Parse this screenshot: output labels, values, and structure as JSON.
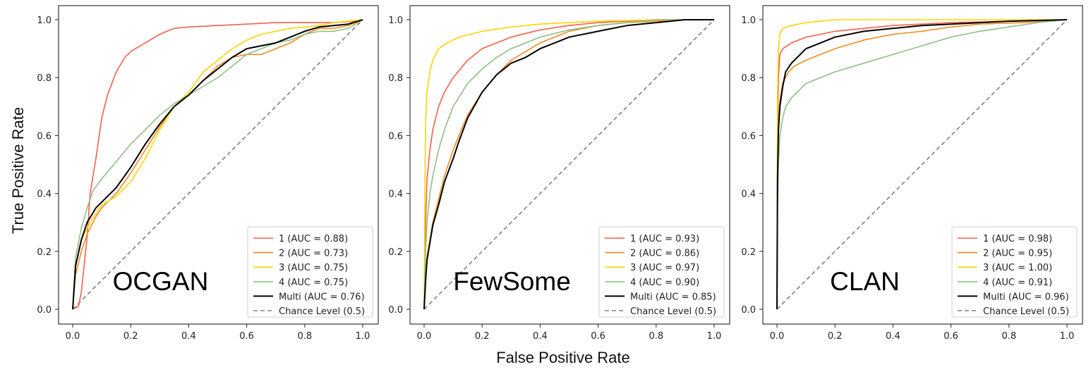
{
  "figure": {
    "xlabel": "False Positive Rate",
    "ylabel": "True Positive Rate"
  },
  "chart_data": [
    {
      "type": "line",
      "title": "OCGAN",
      "xlim": [
        0,
        1
      ],
      "ylim": [
        0,
        1
      ],
      "xticks": [
        "0.0",
        "0.2",
        "0.4",
        "0.6",
        "0.8",
        "1.0"
      ],
      "yticks": [
        "0.0",
        "0.2",
        "0.4",
        "0.6",
        "0.8",
        "1.0"
      ],
      "legend_position": "lower-right",
      "series": [
        {
          "name": "1 (AUC = 0.88)",
          "color": "#f4604a",
          "x": [
            0,
            0.02,
            0.03,
            0.05,
            0.06,
            0.08,
            0.1,
            0.12,
            0.15,
            0.18,
            0.2,
            0.25,
            0.3,
            0.35,
            0.4,
            0.5,
            0.6,
            0.7,
            0.8,
            0.9,
            0.97,
            1.0
          ],
          "y": [
            0,
            0.01,
            0.06,
            0.25,
            0.4,
            0.52,
            0.66,
            0.74,
            0.82,
            0.87,
            0.89,
            0.92,
            0.95,
            0.97,
            0.975,
            0.98,
            0.985,
            0.99,
            0.99,
            0.99,
            0.995,
            1.0
          ]
        },
        {
          "name": "2 (AUC = 0.73)",
          "color": "#f28a1f",
          "x": [
            0,
            0.01,
            0.03,
            0.05,
            0.08,
            0.1,
            0.15,
            0.2,
            0.25,
            0.3,
            0.35,
            0.4,
            0.45,
            0.5,
            0.55,
            0.6,
            0.65,
            0.7,
            0.75,
            0.8,
            0.85,
            0.9,
            0.95,
            1.0
          ],
          "y": [
            0,
            0.12,
            0.2,
            0.26,
            0.32,
            0.35,
            0.4,
            0.47,
            0.55,
            0.63,
            0.7,
            0.74,
            0.79,
            0.84,
            0.87,
            0.88,
            0.88,
            0.9,
            0.92,
            0.95,
            0.97,
            0.97,
            0.98,
            1.0
          ]
        },
        {
          "name": "3 (AUC = 0.75)",
          "color": "#fdd500",
          "x": [
            0,
            0.01,
            0.03,
            0.06,
            0.1,
            0.15,
            0.2,
            0.25,
            0.3,
            0.35,
            0.4,
            0.45,
            0.5,
            0.55,
            0.6,
            0.65,
            0.7,
            0.75,
            0.8,
            0.85,
            0.9,
            0.95,
            1.0
          ],
          "y": [
            0,
            0.15,
            0.24,
            0.3,
            0.36,
            0.39,
            0.44,
            0.52,
            0.62,
            0.7,
            0.75,
            0.82,
            0.86,
            0.9,
            0.93,
            0.95,
            0.96,
            0.97,
            0.975,
            0.98,
            0.99,
            0.995,
            1.0
          ]
        },
        {
          "name": "4 (AUC = 0.75)",
          "color": "#8fbf85",
          "x": [
            0,
            0.01,
            0.03,
            0.05,
            0.07,
            0.1,
            0.15,
            0.2,
            0.25,
            0.3,
            0.35,
            0.4,
            0.45,
            0.5,
            0.55,
            0.6,
            0.65,
            0.7,
            0.75,
            0.8,
            0.85,
            0.9,
            0.95,
            1.0
          ],
          "y": [
            0,
            0.18,
            0.28,
            0.35,
            0.41,
            0.45,
            0.51,
            0.57,
            0.62,
            0.67,
            0.71,
            0.74,
            0.77,
            0.8,
            0.84,
            0.88,
            0.9,
            0.92,
            0.93,
            0.95,
            0.96,
            0.96,
            0.97,
            1.0
          ]
        },
        {
          "name": "Multi (AUC = 0.76)",
          "color": "#000000",
          "x": [
            0,
            0.01,
            0.03,
            0.05,
            0.08,
            0.1,
            0.15,
            0.2,
            0.25,
            0.3,
            0.35,
            0.4,
            0.45,
            0.5,
            0.55,
            0.6,
            0.65,
            0.7,
            0.75,
            0.8,
            0.85,
            0.9,
            0.95,
            1.0
          ],
          "y": [
            0,
            0.15,
            0.24,
            0.3,
            0.35,
            0.37,
            0.42,
            0.49,
            0.57,
            0.64,
            0.7,
            0.74,
            0.79,
            0.83,
            0.87,
            0.9,
            0.91,
            0.92,
            0.94,
            0.96,
            0.975,
            0.98,
            0.985,
            1.0
          ]
        },
        {
          "name": "Chance Level (0.5)",
          "color": "#808080",
          "dashed": true,
          "x": [
            0,
            1
          ],
          "y": [
            0,
            1
          ]
        }
      ]
    },
    {
      "type": "line",
      "title": "FewSome",
      "xlim": [
        0,
        1
      ],
      "ylim": [
        0,
        1
      ],
      "xticks": [
        "0.0",
        "0.2",
        "0.4",
        "0.6",
        "0.8",
        "1.0"
      ],
      "yticks": [
        "0.0",
        "0.2",
        "0.4",
        "0.6",
        "0.8",
        "1.0"
      ],
      "legend_position": "lower-right",
      "series": [
        {
          "name": "1 (AUC = 0.93)",
          "color": "#f4604a",
          "x": [
            0,
            0.005,
            0.01,
            0.02,
            0.03,
            0.05,
            0.07,
            0.1,
            0.15,
            0.2,
            0.25,
            0.3,
            0.4,
            0.5,
            0.6,
            0.7,
            0.8,
            1.0
          ],
          "y": [
            0,
            0.3,
            0.45,
            0.55,
            0.62,
            0.7,
            0.75,
            0.8,
            0.86,
            0.9,
            0.92,
            0.94,
            0.965,
            0.98,
            0.99,
            0.995,
            1.0,
            1.0
          ]
        },
        {
          "name": "2 (AUC = 0.86)",
          "color": "#f28a1f",
          "x": [
            0,
            0.005,
            0.01,
            0.02,
            0.03,
            0.05,
            0.07,
            0.1,
            0.12,
            0.15,
            0.2,
            0.25,
            0.3,
            0.35,
            0.4,
            0.5,
            0.6,
            0.7,
            0.8,
            0.9,
            1.0
          ],
          "y": [
            0,
            0.1,
            0.18,
            0.24,
            0.3,
            0.38,
            0.46,
            0.55,
            0.6,
            0.67,
            0.75,
            0.81,
            0.86,
            0.89,
            0.92,
            0.96,
            0.98,
            0.99,
            0.995,
            1.0,
            1.0
          ]
        },
        {
          "name": "3 (AUC = 0.97)",
          "color": "#fdd500",
          "x": [
            0,
            0.003,
            0.005,
            0.01,
            0.02,
            0.03,
            0.05,
            0.08,
            0.12,
            0.2,
            0.3,
            0.4,
            0.5,
            0.6,
            0.8,
            1.0
          ],
          "y": [
            0,
            0.45,
            0.65,
            0.75,
            0.82,
            0.86,
            0.9,
            0.92,
            0.94,
            0.96,
            0.975,
            0.985,
            0.99,
            0.995,
            1.0,
            1.0
          ]
        },
        {
          "name": "4 (AUC = 0.90)",
          "color": "#8fbf85",
          "x": [
            0,
            0.005,
            0.01,
            0.02,
            0.03,
            0.05,
            0.07,
            0.1,
            0.15,
            0.2,
            0.25,
            0.3,
            0.35,
            0.4,
            0.5,
            0.6,
            0.7,
            0.8,
            1.0
          ],
          "y": [
            0,
            0.2,
            0.3,
            0.4,
            0.46,
            0.55,
            0.62,
            0.7,
            0.78,
            0.83,
            0.87,
            0.9,
            0.92,
            0.94,
            0.965,
            0.98,
            0.99,
            1.0,
            1.0
          ]
        },
        {
          "name": "Multi (AUC = 0.85)",
          "color": "#000000",
          "x": [
            0,
            0.005,
            0.01,
            0.02,
            0.03,
            0.05,
            0.07,
            0.1,
            0.12,
            0.15,
            0.2,
            0.25,
            0.3,
            0.35,
            0.4,
            0.45,
            0.5,
            0.6,
            0.7,
            0.8,
            0.9,
            1.0
          ],
          "y": [
            0,
            0.1,
            0.17,
            0.23,
            0.29,
            0.36,
            0.44,
            0.52,
            0.58,
            0.66,
            0.75,
            0.81,
            0.85,
            0.87,
            0.9,
            0.92,
            0.94,
            0.96,
            0.98,
            0.99,
            1.0,
            1.0
          ]
        },
        {
          "name": "Chance Level (0.5)",
          "color": "#808080",
          "dashed": true,
          "x": [
            0,
            1
          ],
          "y": [
            0,
            1
          ]
        }
      ]
    },
    {
      "type": "line",
      "title": "CLAN",
      "xlim": [
        0,
        1
      ],
      "ylim": [
        0,
        1
      ],
      "xticks": [
        "0.0",
        "0.2",
        "0.4",
        "0.6",
        "0.8",
        "1.0"
      ],
      "yticks": [
        "0.0",
        "0.2",
        "0.4",
        "0.6",
        "0.8",
        "1.0"
      ],
      "legend_position": "lower-right",
      "series": [
        {
          "name": "1 (AUC = 0.98)",
          "color": "#f4604a",
          "x": [
            0,
            0.002,
            0.005,
            0.01,
            0.02,
            0.05,
            0.1,
            0.15,
            0.2,
            0.3,
            0.4,
            0.5,
            0.6,
            0.8,
            1.0
          ],
          "y": [
            0,
            0.6,
            0.8,
            0.88,
            0.9,
            0.92,
            0.94,
            0.95,
            0.96,
            0.97,
            0.98,
            0.985,
            0.99,
            0.995,
            1.0
          ]
        },
        {
          "name": "2 (AUC = 0.95)",
          "color": "#f28a1f",
          "x": [
            0,
            0.002,
            0.005,
            0.01,
            0.02,
            0.04,
            0.06,
            0.1,
            0.15,
            0.2,
            0.3,
            0.4,
            0.5,
            0.6,
            0.7,
            0.85,
            1.0
          ],
          "y": [
            0,
            0.5,
            0.65,
            0.72,
            0.78,
            0.82,
            0.84,
            0.86,
            0.88,
            0.9,
            0.93,
            0.95,
            0.96,
            0.975,
            0.985,
            0.99,
            1.0
          ]
        },
        {
          "name": "3 (AUC = 1.00)",
          "color": "#fdd500",
          "x": [
            0,
            0.002,
            0.005,
            0.01,
            0.02,
            0.05,
            0.1,
            0.15,
            0.2,
            0.3,
            0.5,
            0.7,
            1.0
          ],
          "y": [
            0,
            0.75,
            0.9,
            0.95,
            0.97,
            0.98,
            0.99,
            0.995,
            1.0,
            1.0,
            1.0,
            1.0,
            1.0
          ]
        },
        {
          "name": "4 (AUC = 0.91)",
          "color": "#8fbf85",
          "x": [
            0,
            0.002,
            0.005,
            0.01,
            0.02,
            0.03,
            0.05,
            0.08,
            0.1,
            0.15,
            0.2,
            0.3,
            0.4,
            0.5,
            0.6,
            0.7,
            0.8,
            0.9,
            1.0
          ],
          "y": [
            0,
            0.35,
            0.5,
            0.6,
            0.66,
            0.7,
            0.73,
            0.76,
            0.78,
            0.8,
            0.82,
            0.85,
            0.88,
            0.91,
            0.94,
            0.96,
            0.975,
            0.99,
            1.0
          ]
        },
        {
          "name": "Multi (AUC = 0.96)",
          "color": "#000000",
          "x": [
            0,
            0.002,
            0.005,
            0.01,
            0.02,
            0.03,
            0.05,
            0.08,
            0.1,
            0.15,
            0.2,
            0.3,
            0.4,
            0.5,
            0.6,
            0.7,
            0.8,
            1.0
          ],
          "y": [
            0,
            0.45,
            0.62,
            0.7,
            0.77,
            0.82,
            0.85,
            0.88,
            0.9,
            0.92,
            0.94,
            0.96,
            0.97,
            0.98,
            0.985,
            0.99,
            0.995,
            1.0
          ]
        },
        {
          "name": "Chance Level (0.5)",
          "color": "#808080",
          "dashed": true,
          "x": [
            0,
            1
          ],
          "y": [
            0,
            1
          ]
        }
      ]
    }
  ]
}
